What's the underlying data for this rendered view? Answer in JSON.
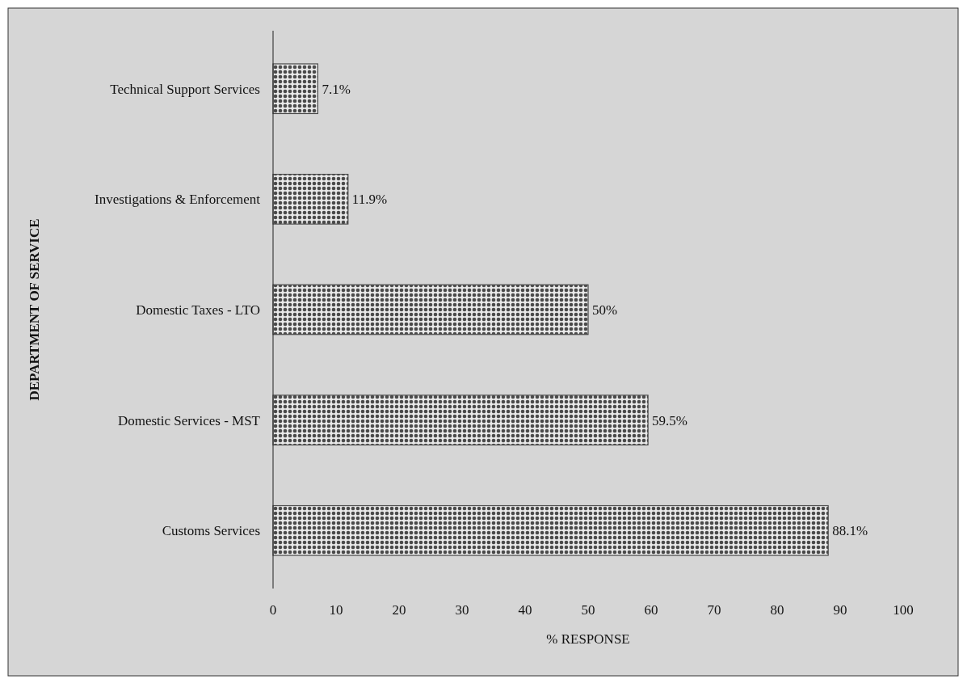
{
  "chart_data": {
    "type": "bar",
    "orientation": "horizontal",
    "ylabel": "DEPARTMENT OF SERVICE",
    "xlabel": "% RESPONSE",
    "categories": [
      "Technical Support Services",
      "Investigations & Enforcement",
      "Domestic Taxes - LTO",
      "Domestic Services - MST",
      "Customs Services"
    ],
    "values": [
      7.1,
      11.9,
      50,
      59.5,
      88.1
    ],
    "value_labels": [
      "7.1%",
      "11.9%",
      "50%",
      "59.5%",
      "88.1%"
    ],
    "color": "#4a4a4a",
    "xlim": [
      0,
      100
    ],
    "xticks": [
      0,
      10,
      20,
      30,
      40,
      50,
      60,
      70,
      80,
      90,
      100
    ],
    "grid": false
  }
}
